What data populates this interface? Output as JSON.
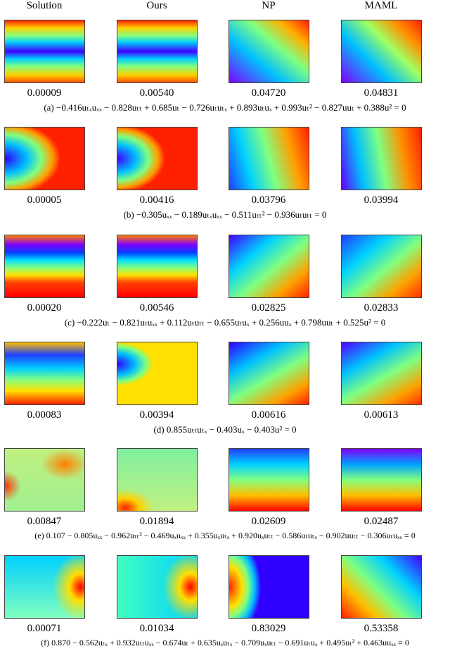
{
  "columns": [
    "Solution",
    "Ours",
    "NP",
    "MAML"
  ],
  "rows": [
    {
      "errors": [
        "0.00009",
        "0.00540",
        "0.04720",
        "0.04831"
      ],
      "caption": "(a) −0.416uₜₓuₓₓ − 0.828uₜₜ + 0.685uₜ − 0.726uₜuₜₓ + 0.893uₜuₓ + 0.993uₜ² − 0.827uuₜ + 0.388u² = 0"
    },
    {
      "errors": [
        "0.00005",
        "0.00416",
        "0.03796",
        "0.03994"
      ],
      "caption": "(b) −0.305uₓₓ − 0.189uₜₓuₓₓ − 0.511uₜₜ² − 0.936uₜuₜₜ = 0"
    },
    {
      "errors": [
        "0.00020",
        "0.00546",
        "0.02825",
        "0.02833"
      ],
      "caption": "(c) −0.222uₜ − 0.821uₜuₓₓ + 0.112uₜuₜₜ − 0.655uₜuₓ + 0.256uuₓ + 0.798uuₜ + 0.525u² = 0"
    },
    {
      "errors": [
        "0.00083",
        "0.00394",
        "0.00616",
        "0.00613"
      ],
      "caption": "(d) 0.855uₜₜuₜₓ − 0.403uₓ − 0.403u² = 0"
    },
    {
      "errors": [
        "0.00847",
        "0.01894",
        "0.02609",
        "0.02487"
      ],
      "caption": "(e) 0.107 − 0.805uₓₓ − 0.962uₜₜ² − 0.469uₓuₓₓ + 0.355uₓuₜₓ + 0.920uₓuₜₜ − 0.586uₜuₜₓ − 0.902uuₜₜ − 0.306uₜuₓₓ = 0"
    },
    {
      "errors": [
        "0.00071",
        "0.01034",
        "0.83029",
        "0.53358"
      ],
      "caption": "(f) 0.870 − 0.562uₜₓ + 0.932uₜₜuₓₓ − 0.674uₜ + 0.635uₓuₜₓ − 0.709uₓuₜₜ − 0.691uₜuₓ + 0.495uₜ² + 0.463uuₓₓ = 0"
    }
  ]
}
